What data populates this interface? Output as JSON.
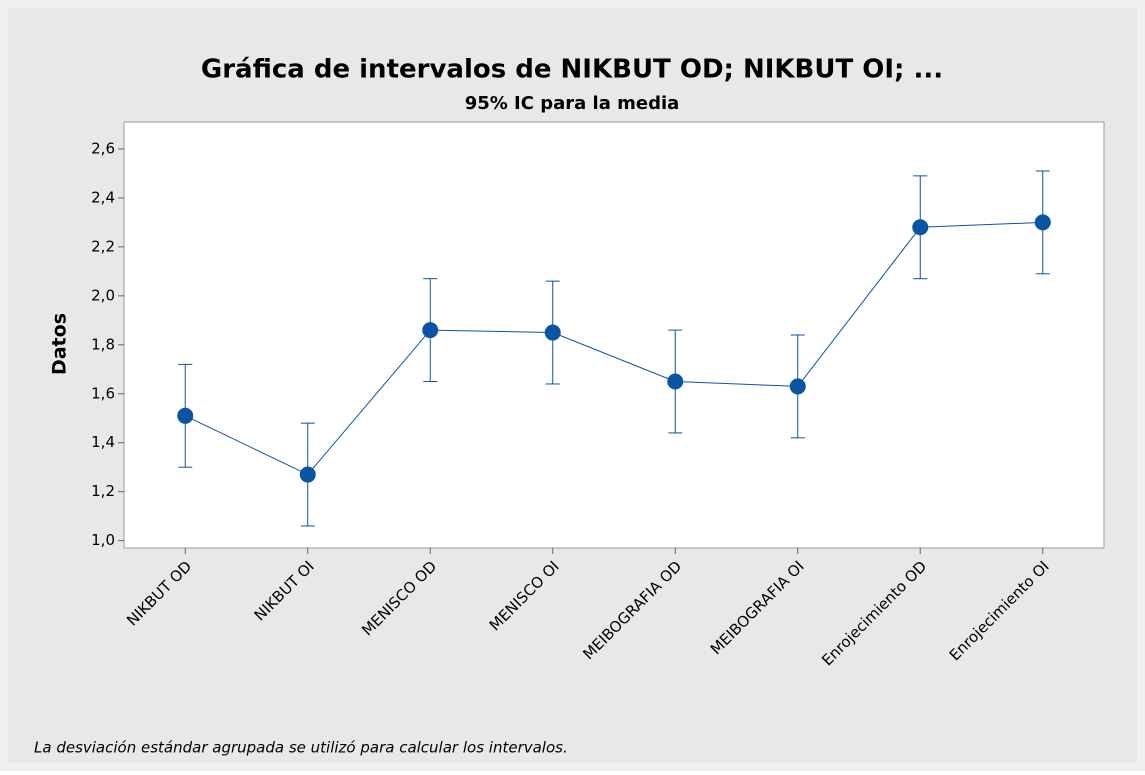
{
  "chart_data": {
    "type": "interval",
    "title": "Gráfica de intervalos de NIKBUT OD; NIKBUT OI; ...",
    "subtitle": "95% IC para la media",
    "y_label": "Datos",
    "footnote": "La desviación estándar agrupada se utilizó para calcular los intervalos.",
    "categories": [
      "NIKBUT OD",
      "NIKBUT OI",
      "MENISCO OD",
      "MENISCO OI",
      "MEIBOGRAFIA OD",
      "MEIBOGRAFIA OI",
      "Enrojecimiento OD",
      "Enrojecimiento OI"
    ],
    "values": [
      1.51,
      1.27,
      1.86,
      1.85,
      1.65,
      1.63,
      2.28,
      2.3
    ],
    "errors": [
      0.21,
      0.21,
      0.21,
      0.21,
      0.21,
      0.21,
      0.21,
      0.21
    ],
    "color": "#0a54a4",
    "ylim": [
      0.97,
      2.71
    ],
    "yticks": [
      {
        "value": 1.0,
        "label": "1,0"
      },
      {
        "value": 1.2,
        "label": "1,2"
      },
      {
        "value": 1.4,
        "label": "1,4"
      },
      {
        "value": 1.6,
        "label": "1,6"
      },
      {
        "value": 1.8,
        "label": "1,8"
      },
      {
        "value": 2.0,
        "label": "2,0"
      },
      {
        "value": 2.2,
        "label": "2,2"
      },
      {
        "value": 2.4,
        "label": "2,4"
      },
      {
        "value": 2.6,
        "label": "2,6"
      }
    ]
  }
}
